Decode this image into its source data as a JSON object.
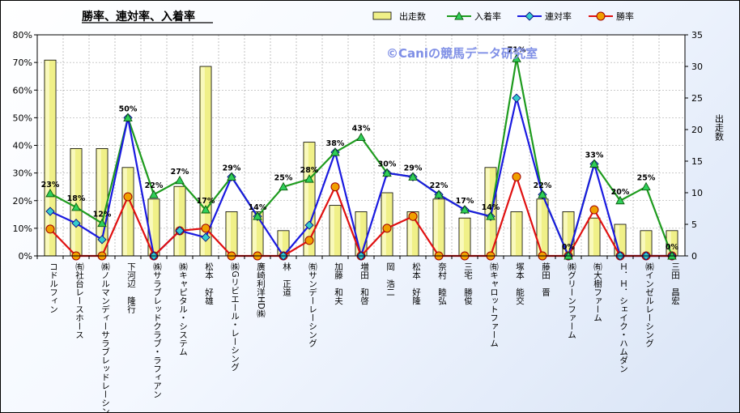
{
  "chart_data": {
    "type": "bar+line",
    "title": "勝率、連対率、入着率",
    "watermark": "©Caniの競馬データ研究室",
    "y2label": "出走数",
    "ylim": [
      0,
      80
    ],
    "y2lim": [
      0,
      35
    ],
    "ytick_labels": [
      "0%",
      "10%",
      "20%",
      "30%",
      "40%",
      "50%",
      "60%",
      "70%",
      "80%"
    ],
    "y2tick_labels": [
      "0",
      "5",
      "10",
      "15",
      "20",
      "25",
      "30",
      "35"
    ],
    "legend_position": "top",
    "grid": true,
    "categories": [
      "コドルフィン",
      "㈲社台レースホース",
      "㈱ノルマンディーサラブレッドレーシング",
      "下河辺　隆行",
      "㈱サラブレッドクラブ・ラフィアン",
      "㈱キャピタル・システム",
      "松本　好雄",
      "㈱Gリビエール・レーシング",
      "廣崎利洋HD㈱",
      "林　正道",
      "㈲サンデーレーシング",
      "加藤　和夫",
      "増田　和啓",
      "岡　浩二",
      "松本　好隆",
      "奈村　睦弘",
      "三宅　勝俊",
      "㈲キャロットファーム",
      "塚本　能交",
      "藤田　晋",
      "㈱グリーンファーム",
      "㈲大樹ファーム",
      "Ｈ．Ｈ．シェイク・ハムダン",
      "㈱インゼルレーシング",
      "三田　昌宏"
    ],
    "series": [
      {
        "name": "出走数",
        "type": "bar",
        "axis": "right",
        "color": "#f0f088",
        "values": [
          31,
          17,
          17,
          14,
          9,
          11,
          30,
          7,
          7,
          4,
          18,
          8,
          7,
          10,
          7,
          9,
          6,
          14,
          7,
          9,
          7,
          6,
          5,
          4,
          4
        ]
      },
      {
        "name": "入着率",
        "type": "line",
        "axis": "left",
        "color": "#1e9b1e",
        "values": [
          22.6,
          17.6,
          11.8,
          50,
          22.2,
          27.3,
          16.7,
          28.6,
          14.3,
          25,
          27.8,
          37.5,
          42.9,
          30,
          28.6,
          22.2,
          16.7,
          14.3,
          71.4,
          22.2,
          0,
          33.3,
          20,
          25,
          0
        ]
      },
      {
        "name": "連対率",
        "type": "line",
        "axis": "left",
        "color": "#1a1ae0",
        "values": [
          16.1,
          11.8,
          5.9,
          50,
          0,
          9.1,
          6.7,
          28.6,
          14.3,
          0,
          11.1,
          37.5,
          0,
          30,
          28.6,
          22.2,
          16.7,
          14.3,
          57.1,
          22.2,
          0,
          33.3,
          0,
          0,
          0
        ]
      },
      {
        "name": "勝率",
        "type": "line",
        "axis": "left",
        "color": "#e01010",
        "values": [
          9.7,
          0,
          0,
          21.4,
          0,
          9.1,
          10,
          0,
          0,
          0,
          5.6,
          25,
          0,
          10,
          14.3,
          0,
          0,
          0,
          28.6,
          0,
          0,
          16.7,
          0,
          0,
          0
        ]
      }
    ],
    "data_labels": [
      "23%",
      "18%",
      "12%",
      "50%",
      "22%",
      "27%",
      "17%",
      "29%",
      "14%",
      "25%",
      "28%",
      "38%",
      "43%",
      "30%",
      "29%",
      "22%",
      "17%",
      "14%",
      "71%",
      "22%",
      "0%",
      "33%",
      "20%",
      "25%",
      "0%"
    ]
  }
}
